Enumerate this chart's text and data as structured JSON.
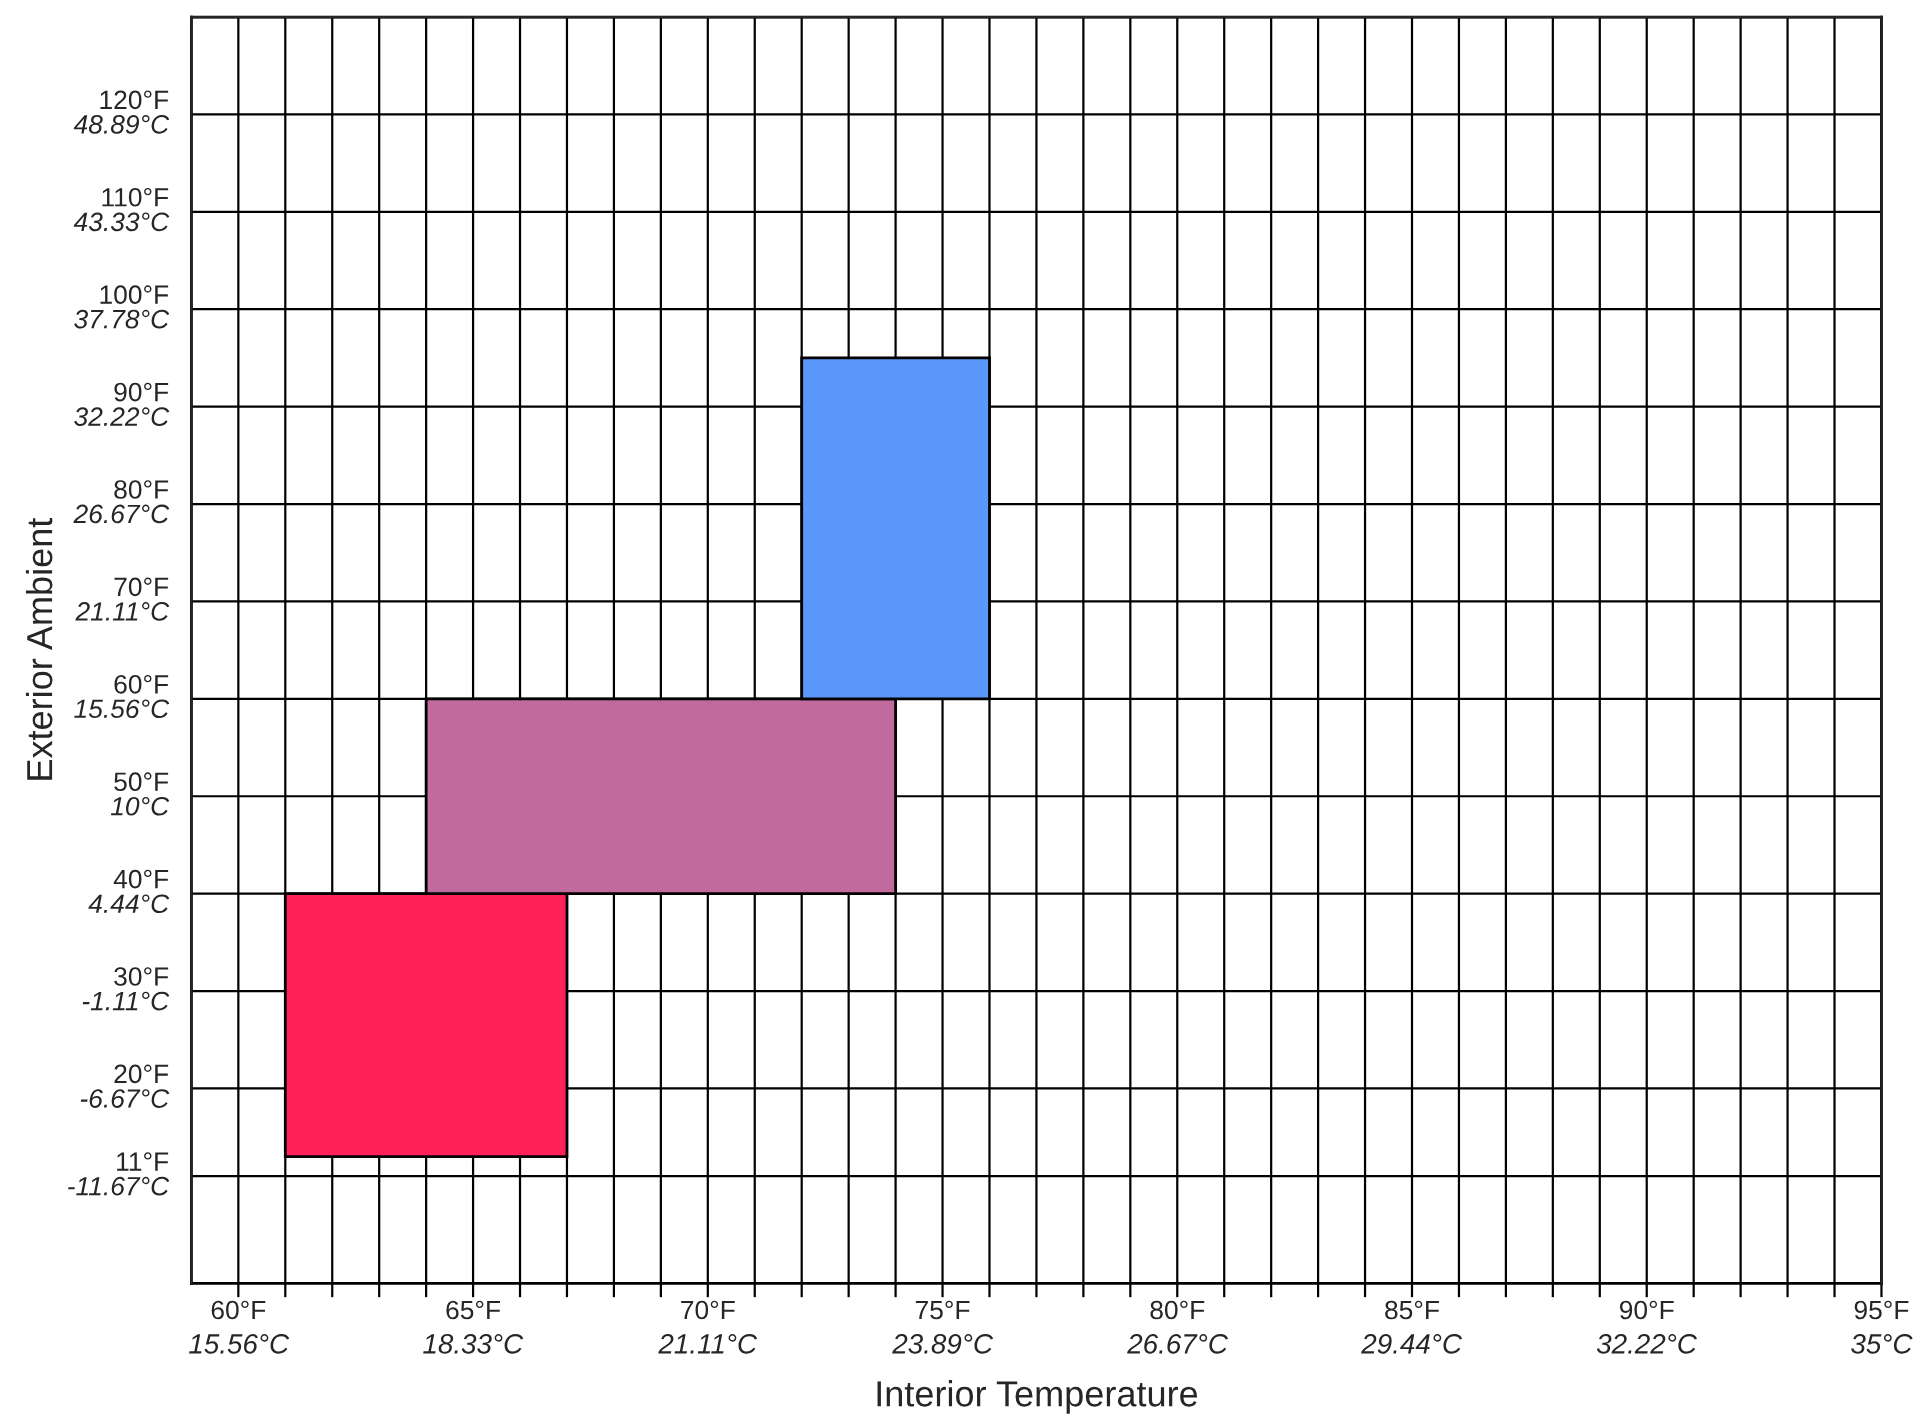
{
  "chart_data": {
    "type": "area",
    "xlabel": "Interior Temperature",
    "ylabel": "Exterior Ambient",
    "series": [
      {
        "x": [
          61,
          67,
          67,
          61
        ],
        "values": [
          13,
          13,
          40,
          40
        ],
        "color": "#fe2259",
        "axis": "y2"
      },
      {
        "x": [
          64,
          74,
          74,
          64
        ],
        "values": [
          40,
          40,
          60,
          60
        ],
        "color": "#c06a9e",
        "axis": "y2"
      },
      {
        "x": [
          72,
          76,
          76,
          72
        ],
        "values": [
          60,
          60,
          95,
          95
        ],
        "color": "#5a98fc",
        "axis": "y2"
      }
    ],
    "xlim": [
      59,
      95
    ],
    "xticks": [
      {
        "value": 60,
        "label": "60°F"
      },
      {
        "value": 61,
        "label": null
      },
      {
        "value": 62,
        "label": null
      },
      {
        "value": 63,
        "label": null
      },
      {
        "value": 64,
        "label": null
      },
      {
        "value": 65,
        "label": "65°F"
      },
      {
        "value": 66,
        "label": null
      },
      {
        "value": 67,
        "label": null
      },
      {
        "value": 68,
        "label": null
      },
      {
        "value": 69,
        "label": null
      },
      {
        "value": 70,
        "label": "70°F"
      },
      {
        "value": 71,
        "label": null
      },
      {
        "value": 72,
        "label": null
      },
      {
        "value": 73,
        "label": null
      },
      {
        "value": 74,
        "label": null
      },
      {
        "value": 75,
        "label": "75°F"
      },
      {
        "value": 76,
        "label": null
      },
      {
        "value": 77,
        "label": null
      },
      {
        "value": 78,
        "label": null
      },
      {
        "value": 79,
        "label": null
      },
      {
        "value": 80,
        "label": "80°F"
      },
      {
        "value": 81,
        "label": null
      },
      {
        "value": 82,
        "label": null
      },
      {
        "value": 83,
        "label": null
      },
      {
        "value": 84,
        "label": null
      },
      {
        "value": 85,
        "label": "85°F"
      },
      {
        "value": 86,
        "label": null
      },
      {
        "value": 87,
        "label": null
      },
      {
        "value": 88,
        "label": null
      },
      {
        "value": 89,
        "label": null
      },
      {
        "value": 90,
        "label": "90°F"
      },
      {
        "value": 91,
        "label": null
      },
      {
        "value": 92,
        "label": null
      },
      {
        "value": 93,
        "label": null
      },
      {
        "value": 94,
        "label": null
      },
      {
        "value": 95,
        "label": "95°F"
      }
    ],
    "x2lim": [
      15,
      35
    ],
    "x2ticks": [
      {
        "value": 15.56,
        "label": "15.56°C"
      },
      {
        "value": 18.33,
        "label": "18.33°C"
      },
      {
        "value": 21.11,
        "label": "21.11°C"
      },
      {
        "value": 23.89,
        "label": "23.89°C"
      },
      {
        "value": 26.67,
        "label": "26.67°C"
      },
      {
        "value": 29.44,
        "label": "29.44°C"
      },
      {
        "value": 32.22,
        "label": "32.22°C"
      },
      {
        "value": 35,
        "label": "35°C"
      }
    ],
    "ylim": [
      -17.78,
      54.44
    ],
    "yticks": [
      {
        "value": -11.67,
        "label": "-11.67°C"
      },
      {
        "value": -6.67,
        "label": "-6.67°C"
      },
      {
        "value": -1.11,
        "label": "-1.11°C"
      },
      {
        "value": 4.44,
        "label": "4.44°C"
      },
      {
        "value": 10,
        "label": "10°C"
      },
      {
        "value": 15.56,
        "label": "15.56°C"
      },
      {
        "value": 21.11,
        "label": "21.11°C"
      },
      {
        "value": 26.67,
        "label": "26.67°C"
      },
      {
        "value": 32.22,
        "label": "32.22°C"
      },
      {
        "value": 37.78,
        "label": "37.78°C"
      },
      {
        "value": 43.33,
        "label": "43.33°C"
      },
      {
        "value": 48.89,
        "label": "48.89°C"
      }
    ],
    "y2lim": [
      0,
      130
    ],
    "y2ticks": [
      {
        "value": 11,
        "label": "11°F"
      },
      {
        "value": 20,
        "label": "20°F"
      },
      {
        "value": 30,
        "label": "30°F"
      },
      {
        "value": 40,
        "label": "40°F"
      },
      {
        "value": 50,
        "label": "50°F"
      },
      {
        "value": 60,
        "label": "60°F"
      },
      {
        "value": 70,
        "label": "70°F"
      },
      {
        "value": 80,
        "label": "80°F"
      },
      {
        "value": 90,
        "label": "90°F"
      },
      {
        "value": 100,
        "label": "100°F"
      },
      {
        "value": 110,
        "label": "110°F"
      },
      {
        "value": 120,
        "label": "120°F"
      }
    ],
    "grid": true
  }
}
